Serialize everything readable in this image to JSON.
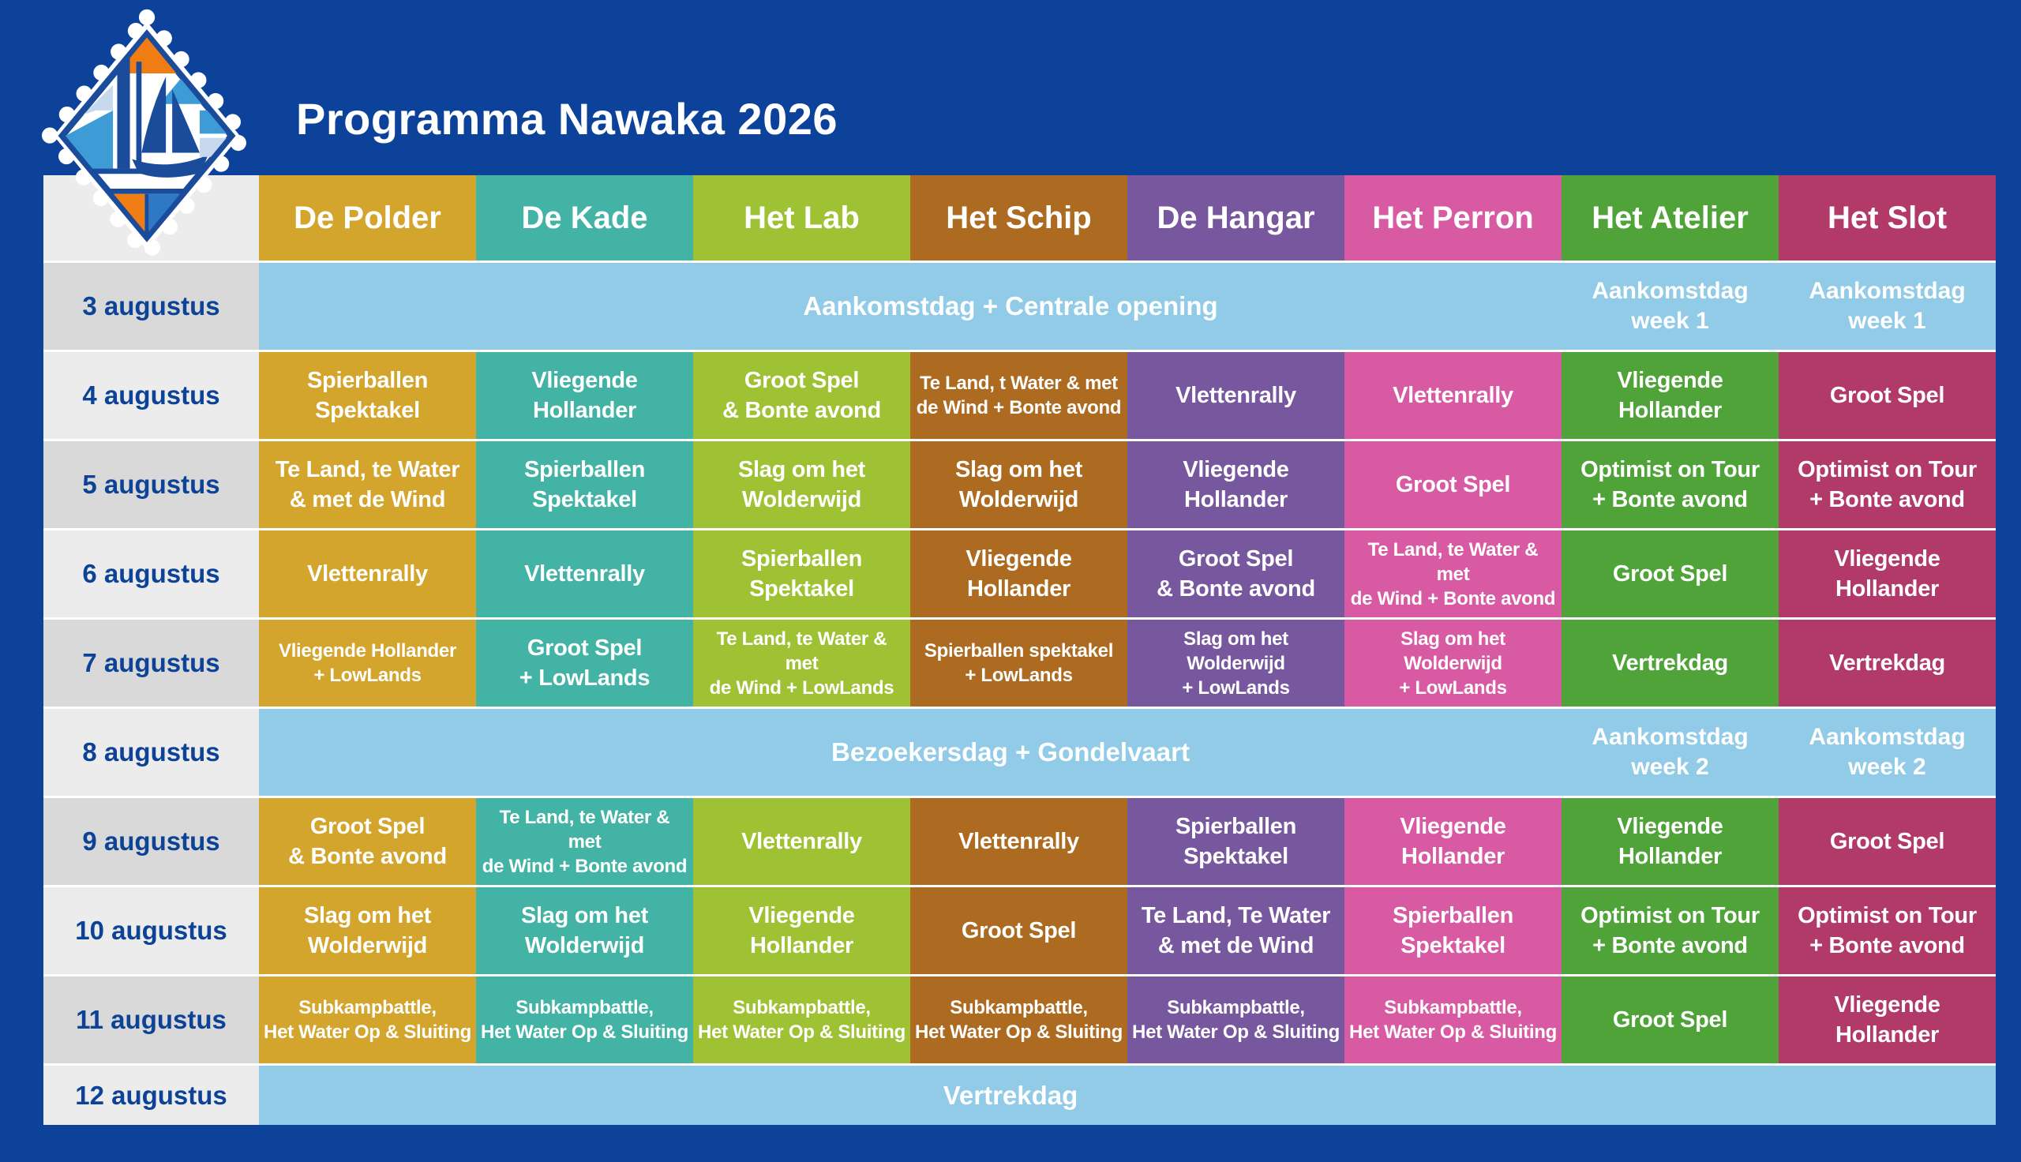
{
  "header": {
    "title": "Programma Nawaka 2026",
    "logo_alt": "nawaka-sailboat-logo"
  },
  "colors": {
    "page_background": "#0c429a",
    "span_blue": "#92cbe7",
    "date_row_dark": "#d9d9d9",
    "date_row_light": "#ececec",
    "date_text": "#0d4397",
    "cell_text": "#ffffff",
    "logo_dark_blue": "#1b4b9b",
    "logo_orange": "#ef7d14",
    "logo_mid_blue": "#3d9bd5",
    "logo_pale_blue": "#c7d9ee"
  },
  "columns": [
    {
      "key": "polder",
      "label": "De Polder",
      "color": "#d4a52d"
    },
    {
      "key": "kade",
      "label": "De Kade",
      "color": "#42b3a4"
    },
    {
      "key": "lab",
      "label": "Het Lab",
      "color": "#9ec233"
    },
    {
      "key": "schip",
      "label": "Het Schip",
      "color": "#ac6b20"
    },
    {
      "key": "hangar",
      "label": "De Hangar",
      "color": "#77579e"
    },
    {
      "key": "perron",
      "label": "Het Perron",
      "color": "#d75aa3"
    },
    {
      "key": "atelier",
      "label": "Het Atelier",
      "color": "#4fa338"
    },
    {
      "key": "slot",
      "label": "Het Slot",
      "color": "#b23a68"
    }
  ],
  "rows": [
    {
      "date": "3 augustus",
      "type": "span",
      "text": "Aankomstdag + Centrale opening",
      "extras": [
        [
          "Aankomstdag",
          "week 1"
        ],
        [
          "Aankomstdag",
          "week 1"
        ]
      ]
    },
    {
      "date": "4 augustus",
      "type": "cells",
      "cells": [
        {
          "lines": [
            "Spierballen",
            "Spektakel"
          ]
        },
        {
          "lines": [
            "Vliegende",
            "Hollander"
          ]
        },
        {
          "lines": [
            "Groot Spel",
            "& Bonte avond"
          ]
        },
        {
          "lines": [
            "Te Land, t Water & met",
            "de Wind + Bonte avond"
          ],
          "size": "sm"
        },
        {
          "lines": [
            "Vlettenrally"
          ]
        },
        {
          "lines": [
            "Vlettenrally"
          ]
        },
        {
          "lines": [
            "Vliegende",
            "Hollander"
          ]
        },
        {
          "lines": [
            "Groot Spel"
          ]
        }
      ]
    },
    {
      "date": "5 augustus",
      "type": "cells",
      "cells": [
        {
          "lines": [
            "Te Land, te Water",
            "& met de Wind"
          ]
        },
        {
          "lines": [
            "Spierballen",
            "Spektakel"
          ]
        },
        {
          "lines": [
            "Slag om het",
            "Wolderwijd"
          ]
        },
        {
          "lines": [
            "Slag om het",
            "Wolderwijd"
          ]
        },
        {
          "lines": [
            "Vliegende",
            "Hollander"
          ]
        },
        {
          "lines": [
            "Groot Spel"
          ]
        },
        {
          "lines": [
            "Optimist on Tour",
            "+ Bonte avond"
          ]
        },
        {
          "lines": [
            "Optimist on Tour",
            "+ Bonte avond"
          ]
        }
      ]
    },
    {
      "date": "6 augustus",
      "type": "cells",
      "cells": [
        {
          "lines": [
            "Vlettenrally"
          ]
        },
        {
          "lines": [
            "Vlettenrally"
          ]
        },
        {
          "lines": [
            "Spierballen",
            "Spektakel"
          ]
        },
        {
          "lines": [
            "Vliegende",
            "Hollander"
          ]
        },
        {
          "lines": [
            "Groot Spel",
            "& Bonte avond"
          ]
        },
        {
          "lines": [
            "Te Land, te Water & met",
            "de Wind + Bonte avond"
          ],
          "size": "sm"
        },
        {
          "lines": [
            "Groot Spel"
          ]
        },
        {
          "lines": [
            "Vliegende",
            "Hollander"
          ]
        }
      ]
    },
    {
      "date": "7 augustus",
      "type": "cells",
      "cells": [
        {
          "lines": [
            "Vliegende Hollander",
            "+ LowLands"
          ],
          "size": "sm"
        },
        {
          "lines": [
            "Groot Spel",
            "+ LowLands"
          ]
        },
        {
          "lines": [
            "Te Land, te Water & met",
            "de Wind + LowLands"
          ],
          "size": "sm"
        },
        {
          "lines": [
            "Spierballen spektakel",
            "+ LowLands"
          ],
          "size": "sm"
        },
        {
          "lines": [
            "Slag om het Wolderwijd",
            "+ LowLands"
          ],
          "size": "sm"
        },
        {
          "lines": [
            "Slag om het Wolderwijd",
            "+ LowLands"
          ],
          "size": "sm"
        },
        {
          "lines": [
            "Vertrekdag"
          ]
        },
        {
          "lines": [
            "Vertrekdag"
          ]
        }
      ]
    },
    {
      "date": "8 augustus",
      "type": "span",
      "text": "Bezoekersdag + Gondelvaart",
      "extras": [
        [
          "Aankomstdag",
          "week 2"
        ],
        [
          "Aankomstdag",
          "week 2"
        ]
      ]
    },
    {
      "date": "9 augustus",
      "type": "cells",
      "cells": [
        {
          "lines": [
            "Groot Spel",
            "& Bonte avond"
          ]
        },
        {
          "lines": [
            "Te Land, te Water & met",
            "de Wind + Bonte avond"
          ],
          "size": "sm"
        },
        {
          "lines": [
            "Vlettenrally"
          ]
        },
        {
          "lines": [
            "Vlettenrally"
          ]
        },
        {
          "lines": [
            "Spierballen",
            "Spektakel"
          ]
        },
        {
          "lines": [
            "Vliegende",
            "Hollander"
          ]
        },
        {
          "lines": [
            "Vliegende",
            "Hollander"
          ]
        },
        {
          "lines": [
            "Groot Spel"
          ]
        }
      ]
    },
    {
      "date": "10 augustus",
      "type": "cells",
      "cells": [
        {
          "lines": [
            "Slag om het",
            "Wolderwijd"
          ]
        },
        {
          "lines": [
            "Slag om het",
            "Wolderwijd"
          ]
        },
        {
          "lines": [
            "Vliegende",
            "Hollander"
          ]
        },
        {
          "lines": [
            "Groot Spel"
          ]
        },
        {
          "lines": [
            "Te Land, Te Water",
            "& met de Wind"
          ]
        },
        {
          "lines": [
            "Spierballen",
            "Spektakel"
          ]
        },
        {
          "lines": [
            "Optimist on Tour",
            "+ Bonte avond"
          ]
        },
        {
          "lines": [
            "Optimist on Tour",
            "+ Bonte avond"
          ]
        }
      ]
    },
    {
      "date": "11 augustus",
      "type": "cells",
      "cells": [
        {
          "lines": [
            "Subkampbattle,",
            "Het Water Op & Sluiting"
          ],
          "size": "sm"
        },
        {
          "lines": [
            "Subkampbattle,",
            "Het Water Op & Sluiting"
          ],
          "size": "sm"
        },
        {
          "lines": [
            "Subkampbattle,",
            "Het Water Op & Sluiting"
          ],
          "size": "sm"
        },
        {
          "lines": [
            "Subkampbattle,",
            "Het Water Op & Sluiting"
          ],
          "size": "sm"
        },
        {
          "lines": [
            "Subkampbattle,",
            "Het Water Op & Sluiting"
          ],
          "size": "sm"
        },
        {
          "lines": [
            "Subkampbattle,",
            "Het Water Op & Sluiting"
          ],
          "size": "sm"
        },
        {
          "lines": [
            "Groot Spel"
          ]
        },
        {
          "lines": [
            "Vliegende",
            "Hollander"
          ]
        }
      ]
    },
    {
      "date": "12 augustus",
      "type": "span",
      "text": "Vertrekdag",
      "extras": []
    }
  ]
}
